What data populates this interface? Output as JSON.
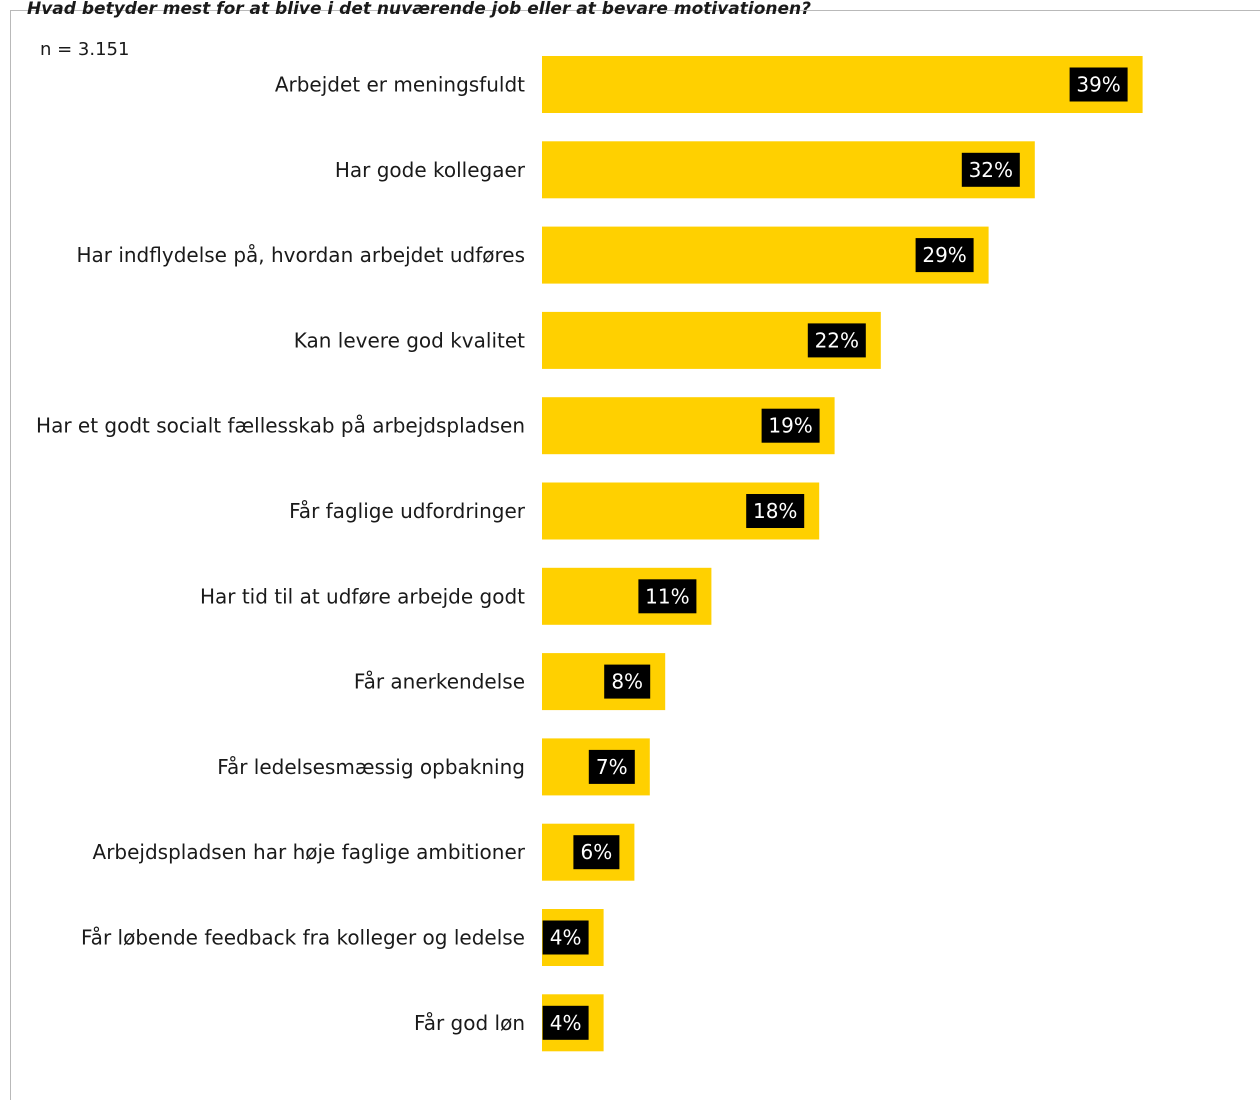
{
  "header": {
    "partial_title": "Hvad betyder mest for at blive i det nuværende job eller at bevare motivationen?"
  },
  "chart_note": "n = 3.151",
  "colors": {
    "bar": "#FFD000",
    "label_box": "#000000",
    "label_text": "#FFFFFF",
    "text": "#1A1A1A"
  },
  "chart_data": {
    "type": "bar",
    "orientation": "horizontal",
    "categories": [
      "Arbejdet er meningsfuldt",
      "Har gode kollegaer",
      "Har indflydelse på, hvordan arbejdet udføres",
      "Kan levere god kvalitet",
      "Har et godt socialt fællesskab på arbejdspladsen",
      "Får faglige udfordringer",
      "Har tid til at udføre arbejde godt",
      "Får anerkendelse",
      "Får ledelsesmæssig opbakning",
      "Arbejdspladsen har høje faglige ambitioner",
      "Får løbende feedback fra kolleger og ledelse",
      "Får god løn"
    ],
    "values": [
      39,
      32,
      29,
      22,
      19,
      18,
      11,
      8,
      7,
      6,
      4,
      4
    ],
    "value_labels": [
      "39%",
      "32%",
      "29%",
      "22%",
      "19%",
      "18%",
      "11%",
      "8%",
      "7%",
      "6%",
      "4%",
      "4%"
    ],
    "unit": "%",
    "grid": false,
    "legend": "none"
  }
}
